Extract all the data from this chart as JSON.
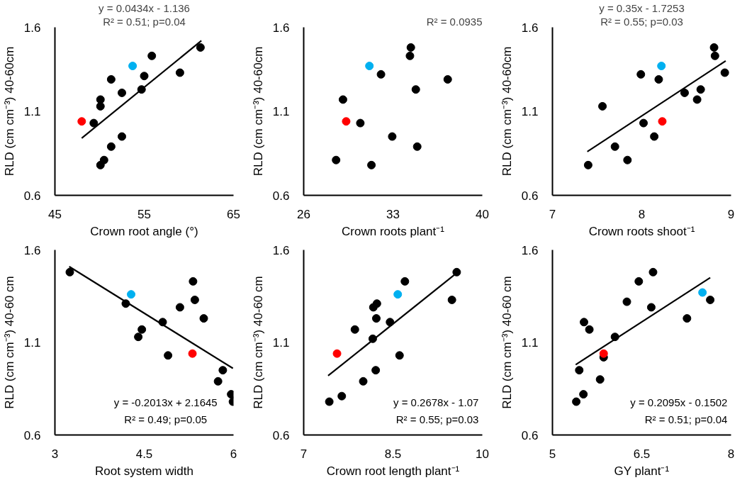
{
  "chart_data": [
    {
      "type": "scatter",
      "xlabel": "Crown root angle (°)",
      "ylabel": "RLD (cm cm⁻³) 40-60cm",
      "xlim": [
        45,
        65
      ],
      "xticks": [
        45,
        55,
        65
      ],
      "ylim": [
        0.6,
        1.6
      ],
      "yticks": [
        0.6,
        1.1,
        1.6
      ],
      "annotations": [
        "y = 0.0434x - 1.136",
        "R² = 0.51; p=0.04"
      ],
      "series": [
        {
          "marker": "circle",
          "x": [
            48.0,
            49.35,
            50.1,
            50.1,
            51.3,
            52.5,
            53.7,
            55.0,
            54.7,
            55.85,
            59.0,
            61.3,
            52.5,
            51.3,
            50.5,
            50.1
          ],
          "values": [
            1.04,
            1.03,
            1.13,
            1.17,
            1.29,
            1.21,
            1.37,
            1.31,
            1.23,
            1.43,
            1.33,
            1.48,
            0.95,
            0.89,
            0.81,
            0.78
          ],
          "colors": [
            "#ff0000",
            "#000000",
            "#000000",
            "#000000",
            "#000000",
            "#000000",
            "#00b0f0",
            "#000000",
            "#000000",
            "#000000",
            "#000000",
            "#000000",
            "#000000",
            "#000000",
            "#000000",
            "#000000"
          ]
        },
        {
          "type": "line",
          "x": [
            48.0,
            61.4
          ],
          "values": [
            0.94,
            1.52
          ],
          "color": "#000000"
        }
      ]
    },
    {
      "type": "scatter",
      "xlabel": "Crown roots plant⁻¹",
      "ylabel": "RLD (cm cm⁻³) 40-60cm",
      "xlim": [
        26,
        40
      ],
      "xticks": [
        26,
        33,
        40
      ],
      "ylim": [
        0.6,
        1.6
      ],
      "yticks": [
        0.6,
        1.1,
        1.6
      ],
      "annotations": [
        "R² = 0.0935"
      ],
      "series": [
        {
          "marker": "circle",
          "x": [
            28.54,
            31.31,
            29.08,
            29.33,
            30.44,
            31.15,
            32.06,
            32.94,
            34.4,
            34.33,
            34.79,
            34.9,
            37.29
          ],
          "values": [
            0.81,
            0.78,
            1.17,
            1.04,
            1.03,
            1.37,
            1.32,
            0.95,
            1.48,
            1.43,
            1.23,
            0.89,
            1.29
          ],
          "colors": [
            "#000000",
            "#000000",
            "#000000",
            "#ff0000",
            "#000000",
            "#00b0f0",
            "#000000",
            "#000000",
            "#000000",
            "#000000",
            "#000000",
            "#000000",
            "#000000"
          ]
        }
      ]
    },
    {
      "type": "scatter",
      "xlabel": "Crown roots shoot⁻¹",
      "ylabel": "RLD (cm cm⁻³) 40-60cm",
      "xlim": [
        7,
        9
      ],
      "xticks": [
        7,
        8,
        9
      ],
      "ylim": [
        0.6,
        1.6
      ],
      "yticks": [
        0.6,
        1.1,
        1.6
      ],
      "annotations": [
        "y = 0.35x - 1.7253",
        "R² = 0.55; p=0.03"
      ],
      "series": [
        {
          "marker": "circle",
          "x": [
            7.4,
            7.7,
            7.84,
            7.56,
            8.02,
            8.14,
            8.23,
            7.99,
            8.19,
            8.22,
            8.48,
            8.66,
            8.62,
            8.81,
            8.82,
            8.93
          ],
          "values": [
            0.78,
            0.89,
            0.81,
            1.13,
            1.03,
            0.95,
            1.04,
            1.32,
            1.29,
            1.37,
            1.21,
            1.23,
            1.17,
            1.48,
            1.43,
            1.33
          ],
          "colors": [
            "#000000",
            "#000000",
            "#000000",
            "#000000",
            "#000000",
            "#000000",
            "#ff0000",
            "#000000",
            "#000000",
            "#00b0f0",
            "#000000",
            "#000000",
            "#000000",
            "#000000",
            "#000000",
            "#000000"
          ]
        },
        {
          "type": "line",
          "x": [
            7.39,
            8.94
          ],
          "values": [
            0.86,
            1.4
          ],
          "color": "#000000"
        }
      ]
    },
    {
      "type": "scatter",
      "xlabel": "Root system width",
      "ylabel": "RLD (cm cm⁻³) 40-60 cm",
      "xlim": [
        3,
        6
      ],
      "xticks": [
        3,
        4.5,
        6
      ],
      "ylim": [
        0.6,
        1.6
      ],
      "yticks": [
        0.6,
        1.1,
        1.6
      ],
      "annotations": [
        "y = -0.2013x + 2.1645",
        "R² = 0.49; p=0.05"
      ],
      "series": [
        {
          "marker": "circle",
          "x": [
            3.25,
            4.28,
            4.19,
            4.46,
            4.4,
            4.81,
            4.9,
            5.1,
            5.32,
            5.35,
            5.5,
            5.31,
            5.82,
            5.74,
            5.96,
            5.99
          ],
          "values": [
            1.48,
            1.36,
            1.31,
            1.17,
            1.13,
            1.21,
            1.03,
            1.29,
            1.43,
            1.33,
            1.23,
            1.04,
            0.95,
            0.89,
            0.82,
            0.78
          ],
          "colors": [
            "#000000",
            "#00b0f0",
            "#000000",
            "#000000",
            "#000000",
            "#000000",
            "#000000",
            "#000000",
            "#000000",
            "#000000",
            "#000000",
            "#ff0000",
            "#000000",
            "#000000",
            "#000000",
            "#000000"
          ]
        },
        {
          "type": "line",
          "x": [
            3.24,
            5.99
          ],
          "values": [
            1.51,
            0.96
          ],
          "color": "#000000"
        }
      ]
    },
    {
      "type": "scatter",
      "xlabel": "Crown root length plant⁻¹",
      "ylabel": "RLD (cm cm⁻³) 40-60 cm",
      "xlim": [
        7,
        10
      ],
      "xticks": [
        7,
        8.5,
        10
      ],
      "ylim": [
        0.6,
        1.6
      ],
      "yticks": [
        0.6,
        1.1,
        1.6
      ],
      "annotations": [
        "y = 0.2678x - 1.07",
        "R² = 0.55; p=0.03"
      ],
      "series": [
        {
          "marker": "circle",
          "x": [
            7.43,
            7.64,
            7.56,
            7.86,
            8.0,
            8.16,
            8.21,
            8.22,
            8.17,
            8.23,
            8.45,
            8.58,
            8.7,
            8.61,
            9.49,
            9.57
          ],
          "values": [
            0.78,
            0.81,
            1.04,
            1.17,
            0.89,
            1.12,
            0.95,
            1.23,
            1.29,
            1.31,
            1.21,
            1.36,
            1.43,
            1.03,
            1.33,
            1.48
          ],
          "colors": [
            "#000000",
            "#000000",
            "#ff0000",
            "#000000",
            "#000000",
            "#000000",
            "#000000",
            "#000000",
            "#000000",
            "#000000",
            "#000000",
            "#00b0f0",
            "#000000",
            "#000000",
            "#000000",
            "#000000"
          ]
        },
        {
          "type": "line",
          "x": [
            7.41,
            9.55
          ],
          "values": [
            0.92,
            1.47
          ],
          "color": "#000000"
        }
      ]
    },
    {
      "type": "scatter",
      "xlabel": "GY plant⁻¹",
      "ylabel": "RLD (cm cm⁻³) 40-60 cm",
      "xlim": [
        5,
        8
      ],
      "xticks": [
        5,
        6.5,
        8
      ],
      "ylim": [
        0.6,
        1.6
      ],
      "yticks": [
        0.6,
        1.1,
        1.6
      ],
      "annotations": [
        "y = 0.2095x - 0.1502",
        "R² = 0.51; p=0.04"
      ],
      "series": [
        {
          "marker": "circle",
          "x": [
            5.4,
            5.52,
            5.45,
            5.53,
            5.62,
            5.8,
            5.86,
            6.05,
            6.25,
            6.45,
            6.66,
            6.69,
            7.26,
            7.65,
            5.86,
            7.52
          ],
          "values": [
            0.78,
            0.82,
            0.95,
            1.21,
            1.17,
            0.9,
            1.02,
            1.13,
            1.32,
            1.43,
            1.29,
            1.48,
            1.23,
            1.33,
            1.04,
            1.37
          ],
          "colors": [
            "#000000",
            "#000000",
            "#000000",
            "#000000",
            "#000000",
            "#000000",
            "#000000",
            "#000000",
            "#000000",
            "#000000",
            "#000000",
            "#000000",
            "#000000",
            "#000000",
            "#ff0000",
            "#00b0f0"
          ]
        },
        {
          "type": "line",
          "x": [
            5.39,
            7.65
          ],
          "values": [
            0.98,
            1.45
          ],
          "color": "#000000"
        }
      ]
    }
  ]
}
